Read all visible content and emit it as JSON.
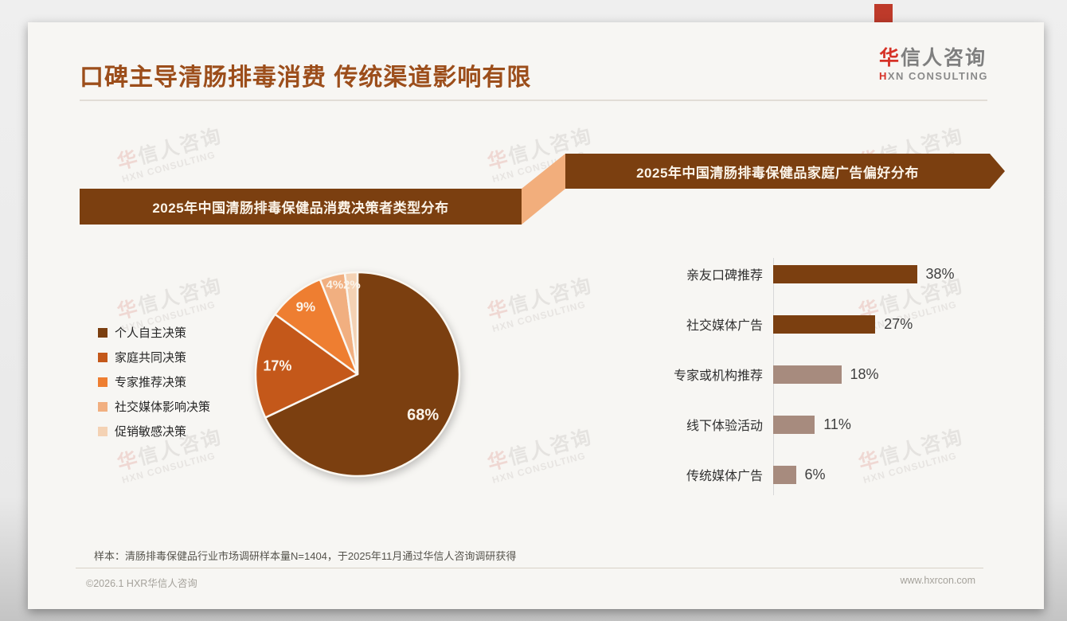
{
  "page": {
    "title": "口碑主导清肠排毒消费 传统渠道影响有限",
    "logo": {
      "cn_first": "华",
      "cn_rest": "信人咨询",
      "en_first": "H",
      "en_rest": "XN CONSULTING"
    },
    "watermark": {
      "cn_first": "华",
      "cn_rest": "信人咨询",
      "en": "HXN CONSULTING"
    },
    "sample_note": "样本：清肠排毒保健品行业市场调研样本量N=1404，于2025年11月通过华信人咨询调研获得",
    "footer": {
      "copyright": "©2026.1 HXR华信人咨询",
      "website": "www.hxrcon.com"
    }
  },
  "colors": {
    "title_brown": "#9C4E1B",
    "banner_brown": "#7B3F10",
    "connector_peach": "#F2AE7C",
    "accent_red": "#BE3A2A",
    "bar_dark": "#7B3F10",
    "bar_mauve": "#A78B7E"
  },
  "chart_data": [
    {
      "type": "pie",
      "title": "2025年中国清肠排毒保健品消费决策者类型分布",
      "labels": [
        "个人自主决策",
        "家庭共同决策",
        "专家推荐决策",
        "社交媒体影响决策",
        "促销敏感决策"
      ],
      "values": [
        68,
        17,
        9,
        4,
        2
      ],
      "value_labels": [
        "68%",
        "17%",
        "9%",
        "4%",
        "2%"
      ],
      "colors": [
        "#7B3F10",
        "#C4581A",
        "#EE7E31",
        "#F1AF80",
        "#F4D2B4"
      ],
      "legend_position": "left",
      "start_angle_deg": 0,
      "direction": "clockwise"
    },
    {
      "type": "bar",
      "title": "2025年中国清肠排毒保健品家庭广告偏好分布",
      "orientation": "horizontal",
      "categories": [
        "亲友口碑推荐",
        "社交媒体广告",
        "专家或机构推荐",
        "线下体验活动",
        "传统媒体广告"
      ],
      "values": [
        38,
        27,
        18,
        11,
        6
      ],
      "value_labels": [
        "38%",
        "27%",
        "18%",
        "11%",
        "6%"
      ],
      "bar_colors": [
        "#7B3F10",
        "#7B3F10",
        "#A78B7E",
        "#A78B7E",
        "#A78B7E"
      ],
      "xlim": [
        0,
        40
      ],
      "grid": false
    }
  ]
}
